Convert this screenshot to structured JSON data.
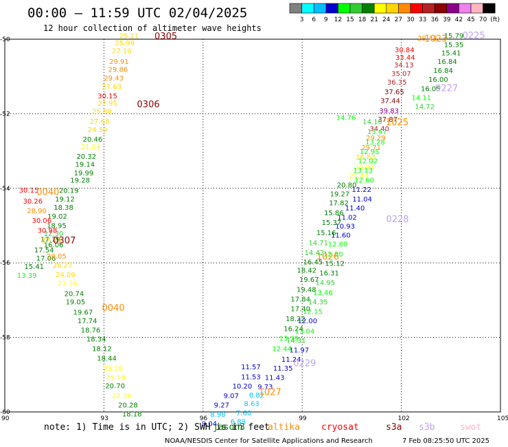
{
  "header": {
    "title": "00:00 — 11:59 UTC 02/04/2025",
    "subtitle": "12 hour collection of altimeter wave heights"
  },
  "colorbar": {
    "labels": [
      "3",
      "6",
      "9",
      "12",
      "15",
      "18",
      "21",
      "24",
      "27",
      "30",
      "33",
      "36",
      "39",
      "42",
      "45",
      "70",
      "(ft)"
    ],
    "colors": [
      "#808080",
      "#00ffff",
      "#00bfff",
      "#0000cd",
      "#00ff00",
      "#32cd32",
      "#008000",
      "#ffff00",
      "#ffd700",
      "#ff8c00",
      "#ff0000",
      "#b22222",
      "#8b0000",
      "#8b008b",
      "#ee82ee",
      "#ffb6c1",
      "#000000"
    ]
  },
  "footer": {
    "note": "note:  1) Time is in UTC; 2) SWH is in feet",
    "credit": "NOAA/NESDIS Center for Satellite Applications and Research",
    "timestamp": "7 Feb 08:25:50 UTC 2025",
    "satellites": [
      {
        "name": "jason3",
        "color": "#008000"
      },
      {
        "name": "altika",
        "color": "#ff8c00"
      },
      {
        "name": "cryosat",
        "color": "#ff0000"
      },
      {
        "name": "s3a",
        "color": "#8b0000"
      },
      {
        "name": "s3b",
        "color": "#c0a0f0"
      },
      {
        "name": "swot",
        "color": "#ffb6c1"
      }
    ]
  },
  "chart_data": {
    "type": "scatter",
    "title": "",
    "xlabel": "",
    "ylabel": "",
    "xlim": [
      90,
      105
    ],
    "ylim": [
      -60,
      -50
    ],
    "xticks": [
      90,
      93,
      96,
      99,
      102,
      105
    ],
    "yticks": [
      -50,
      -52,
      -54,
      -56,
      -58,
      -60
    ],
    "xtick_labels": [
      "90",
      "93",
      "96",
      "99",
      "102",
      "105"
    ],
    "ytick_labels": [
      "-50",
      "-52",
      "-54",
      "-56",
      "-58",
      "-60"
    ],
    "grid": true,
    "points": [
      {
        "x": 93.46,
        "y": -49.97,
        "v": "25.21",
        "c": "#ffd700"
      },
      {
        "x": 93.33,
        "y": -50.17,
        "v": "25.99",
        "c": "#ffd700"
      },
      {
        "x": 93.24,
        "y": -50.38,
        "v": "27.10",
        "c": "#ffd700"
      },
      {
        "x": 93.16,
        "y": -50.66,
        "v": "29.91",
        "c": "#ff8c00"
      },
      {
        "x": 93.13,
        "y": -50.88,
        "v": "29.86",
        "c": "#ff8c00"
      },
      {
        "x": 93.0,
        "y": -51.11,
        "v": "29.43",
        "c": "#ff8c00"
      },
      {
        "x": 92.94,
        "y": -51.34,
        "v": "27.63",
        "c": "#ffd700"
      },
      {
        "x": 92.81,
        "y": -51.59,
        "v": "30.15",
        "c": "#ff0000"
      },
      {
        "x": 92.81,
        "y": -51.78,
        "v": "27.95",
        "c": "#ffd700"
      },
      {
        "x": 92.64,
        "y": -52.0,
        "v": "25.88",
        "c": "#ffd700"
      },
      {
        "x": 92.57,
        "y": -52.27,
        "v": "27.68",
        "c": "#ffd700"
      },
      {
        "x": 92.51,
        "y": -52.49,
        "v": "24.59",
        "c": "#ffd700"
      },
      {
        "x": 92.36,
        "y": -52.75,
        "v": "20.46",
        "c": "#008000"
      },
      {
        "x": 92.3,
        "y": -52.95,
        "v": "21.04",
        "c": "#ffff00"
      },
      {
        "x": 92.17,
        "y": -53.21,
        "v": "20.32",
        "c": "#008000"
      },
      {
        "x": 92.13,
        "y": -53.42,
        "v": "19.14",
        "c": "#008000"
      },
      {
        "x": 92.09,
        "y": -53.65,
        "v": "19.99",
        "c": "#008000"
      },
      {
        "x": 91.98,
        "y": -53.85,
        "v": "19.28",
        "c": "#008000"
      },
      {
        "x": 91.64,
        "y": -54.12,
        "v": "20.19",
        "c": "#008000"
      },
      {
        "x": 91.52,
        "y": -54.35,
        "v": "19.12",
        "c": "#008000"
      },
      {
        "x": 91.48,
        "y": -54.58,
        "v": "18.38",
        "c": "#008000"
      },
      {
        "x": 91.29,
        "y": -54.82,
        "v": "19.02",
        "c": "#008000"
      },
      {
        "x": 91.27,
        "y": -55.06,
        "v": "18.95",
        "c": "#008000"
      },
      {
        "x": 91.18,
        "y": -55.28,
        "v": "12.30",
        "c": "#32cd32"
      },
      {
        "x": 91.08,
        "y": -55.43,
        "v": "17.79",
        "c": "#008000"
      },
      {
        "x": 91.18,
        "y": -55.58,
        "v": "16.06",
        "c": "#008000"
      },
      {
        "x": 90.89,
        "y": -55.72,
        "v": "17.54",
        "c": "#008000"
      },
      {
        "x": 90.95,
        "y": -55.94,
        "v": "17.06",
        "c": "#008000"
      },
      {
        "x": 90.59,
        "y": -56.16,
        "v": "15.41",
        "c": "#008000"
      },
      {
        "x": 90.37,
        "y": -56.4,
        "v": "13.39",
        "c": "#00ff00"
      },
      {
        "x": 90.43,
        "y": -54.11,
        "v": "30.15",
        "c": "#ff0000"
      },
      {
        "x": 90.55,
        "y": -54.41,
        "v": "30.26",
        "c": "#ff0000"
      },
      {
        "x": 90.67,
        "y": -54.67,
        "v": "28.90",
        "c": "#ff8c00"
      },
      {
        "x": 90.82,
        "y": -54.93,
        "v": "30.06",
        "c": "#ff0000"
      },
      {
        "x": 90.99,
        "y": -55.19,
        "v": "30.98",
        "c": "#ff0000"
      },
      {
        "x": 91.11,
        "y": -55.45,
        "v": "27.54",
        "c": "#ffd700"
      },
      {
        "x": 91.27,
        "y": -55.89,
        "v": "29.05",
        "c": "#ff8c00"
      },
      {
        "x": 91.45,
        "y": -56.13,
        "v": "26.27",
        "c": "#ffd700"
      },
      {
        "x": 91.54,
        "y": -56.38,
        "v": "24.09",
        "c": "#ffd700"
      },
      {
        "x": 91.6,
        "y": -56.61,
        "v": "21.76",
        "c": "#ffff00"
      },
      {
        "x": 91.8,
        "y": -56.89,
        "v": "20.74",
        "c": "#008000"
      },
      {
        "x": 91.84,
        "y": -57.11,
        "v": "19.05",
        "c": "#008000"
      },
      {
        "x": 92.07,
        "y": -57.39,
        "v": "19.67",
        "c": "#008000"
      },
      {
        "x": 92.2,
        "y": -57.62,
        "v": "17.74",
        "c": "#008000"
      },
      {
        "x": 92.3,
        "y": -57.87,
        "v": "18.76",
        "c": "#008000"
      },
      {
        "x": 92.47,
        "y": -58.11,
        "v": "18.34",
        "c": "#008000"
      },
      {
        "x": 92.64,
        "y": -58.37,
        "v": "18.12",
        "c": "#008000"
      },
      {
        "x": 92.79,
        "y": -58.63,
        "v": "18.44",
        "c": "#008000"
      },
      {
        "x": 92.98,
        "y": -58.9,
        "v": "23.28",
        "c": "#ffff00"
      },
      {
        "x": 93.06,
        "y": -59.14,
        "v": "21.18",
        "c": "#ffff00"
      },
      {
        "x": 93.04,
        "y": -59.36,
        "v": "20.70",
        "c": "#008000"
      },
      {
        "x": 93.24,
        "y": -59.63,
        "v": "22.36",
        "c": "#ffff00"
      },
      {
        "x": 93.43,
        "y": -59.88,
        "v": "20.28",
        "c": "#008000"
      },
      {
        "x": 93.55,
        "y": -60.12,
        "v": "18.18",
        "c": "#008000"
      },
      {
        "x": 102.49,
        "y": -50.04,
        "v": "29.43",
        "c": "#ff8c00"
      },
      {
        "x": 101.8,
        "y": -50.35,
        "v": "30.84",
        "c": "#ff0000"
      },
      {
        "x": 101.82,
        "y": -50.55,
        "v": "33.44",
        "c": "#ff0000"
      },
      {
        "x": 101.78,
        "y": -50.76,
        "v": "34.13",
        "c": "#b22222"
      },
      {
        "x": 101.7,
        "y": -50.99,
        "v": "35.07",
        "c": "#b22222"
      },
      {
        "x": 101.57,
        "y": -51.22,
        "v": "36.35",
        "c": "#b22222"
      },
      {
        "x": 101.49,
        "y": -51.48,
        "v": "37.65",
        "c": "#8b0000"
      },
      {
        "x": 101.37,
        "y": -51.72,
        "v": "37.44",
        "c": "#8b0000"
      },
      {
        "x": 101.33,
        "y": -51.98,
        "v": "39.83",
        "c": "#8b008b"
      },
      {
        "x": 101.29,
        "y": -52.21,
        "v": "37.87",
        "c": "#8b0000"
      },
      {
        "x": 101.04,
        "y": -52.46,
        "v": "34.40",
        "c": "#b22222"
      },
      {
        "x": 100.93,
        "y": -52.71,
        "v": "29.29",
        "c": "#ff8c00"
      },
      {
        "x": 100.79,
        "y": -52.97,
        "v": "29.71",
        "c": "#ff8c00"
      },
      {
        "x": 100.62,
        "y": -53.23,
        "v": "26.82",
        "c": "#ffd700"
      },
      {
        "x": 100.59,
        "y": -53.5,
        "v": "23.91",
        "c": "#ffff00"
      },
      {
        "x": 100.42,
        "y": -53.74,
        "v": "21.41",
        "c": "#ffff00"
      },
      {
        "x": 100.05,
        "y": -53.98,
        "v": "20.80",
        "c": "#008000"
      },
      {
        "x": 99.84,
        "y": -54.22,
        "v": "19.27",
        "c": "#008000"
      },
      {
        "x": 99.81,
        "y": -54.46,
        "v": "17.82",
        "c": "#008000"
      },
      {
        "x": 99.66,
        "y": -54.72,
        "v": "15.86",
        "c": "#008000"
      },
      {
        "x": 99.59,
        "y": -54.98,
        "v": "15.37",
        "c": "#008000"
      },
      {
        "x": 99.43,
        "y": -55.26,
        "v": "15.16",
        "c": "#008000"
      },
      {
        "x": 99.19,
        "y": -55.53,
        "v": "14.71",
        "c": "#32cd32"
      },
      {
        "x": 99.07,
        "y": -55.79,
        "v": "14.42",
        "c": "#32cd32"
      },
      {
        "x": 99.03,
        "y": -56.04,
        "v": "16.45",
        "c": "#008000"
      },
      {
        "x": 98.84,
        "y": -56.26,
        "v": "18.42",
        "c": "#008000"
      },
      {
        "x": 98.91,
        "y": -56.51,
        "v": "19.67",
        "c": "#008000"
      },
      {
        "x": 98.83,
        "y": -56.78,
        "v": "19.48",
        "c": "#008000"
      },
      {
        "x": 98.65,
        "y": -57.04,
        "v": "17.84",
        "c": "#008000"
      },
      {
        "x": 98.65,
        "y": -57.3,
        "v": "17.40",
        "c": "#008000"
      },
      {
        "x": 98.5,
        "y": -57.56,
        "v": "18.22",
        "c": "#008000"
      },
      {
        "x": 98.44,
        "y": -57.83,
        "v": "16.24",
        "c": "#008000"
      },
      {
        "x": 98.3,
        "y": -58.09,
        "v": "13.39",
        "c": "#00ff00"
      },
      {
        "x": 98.09,
        "y": -58.37,
        "v": "12.44",
        "c": "#00ff00"
      },
      {
        "x": 100.03,
        "y": -52.17,
        "v": "14.76",
        "c": "#00ff00"
      },
      {
        "x": 100.83,
        "y": -52.28,
        "v": "14.10",
        "c": "#32cd32"
      },
      {
        "x": 100.97,
        "y": -52.55,
        "v": "13.47",
        "c": "#00ff00"
      },
      {
        "x": 100.91,
        "y": -52.82,
        "v": "13.28",
        "c": "#00ff00"
      },
      {
        "x": 100.74,
        "y": -53.08,
        "v": "12.95",
        "c": "#00ff00"
      },
      {
        "x": 100.69,
        "y": -53.33,
        "v": "12.02",
        "c": "#00ff00"
      },
      {
        "x": 100.54,
        "y": -53.58,
        "v": "13.13",
        "c": "#00ff00"
      },
      {
        "x": 100.58,
        "y": -53.85,
        "v": "12.60",
        "c": "#00ff00"
      },
      {
        "x": 100.5,
        "y": -54.1,
        "v": "11.22",
        "c": "#0000cd"
      },
      {
        "x": 100.52,
        "y": -54.35,
        "v": "11.04",
        "c": "#0000cd"
      },
      {
        "x": 100.3,
        "y": -54.59,
        "v": "11.40",
        "c": "#0000cd"
      },
      {
        "x": 100.06,
        "y": -54.84,
        "v": "11.02",
        "c": "#0000cd"
      },
      {
        "x": 100.0,
        "y": -55.08,
        "v": "10.93",
        "c": "#0000cd"
      },
      {
        "x": 99.87,
        "y": -55.32,
        "v": "11.60",
        "c": "#0000cd"
      },
      {
        "x": 99.78,
        "y": -55.56,
        "v": "12.80",
        "c": "#00ff00"
      },
      {
        "x": 99.64,
        "y": -55.83,
        "v": "12.80",
        "c": "#00ff00"
      },
      {
        "x": 99.69,
        "y": -56.08,
        "v": "15.12",
        "c": "#008000"
      },
      {
        "x": 99.52,
        "y": -56.34,
        "v": "16.31",
        "c": "#008000"
      },
      {
        "x": 99.4,
        "y": -56.6,
        "v": "14.95",
        "c": "#32cd32"
      },
      {
        "x": 99.33,
        "y": -56.86,
        "v": "13.46",
        "c": "#00ff00"
      },
      {
        "x": 99.18,
        "y": -57.11,
        "v": "14.35",
        "c": "#32cd32"
      },
      {
        "x": 99.02,
        "y": -57.37,
        "v": "12.15",
        "c": "#00ff00"
      },
      {
        "x": 98.86,
        "y": -57.62,
        "v": "12.00",
        "c": "#0000cd"
      },
      {
        "x": 98.78,
        "y": -57.9,
        "v": "13.04",
        "c": "#00ff00"
      },
      {
        "x": 98.52,
        "y": -58.15,
        "v": "14.31",
        "c": "#32cd32"
      },
      {
        "x": 98.61,
        "y": -58.4,
        "v": "11.97",
        "c": "#0000cd"
      },
      {
        "x": 98.37,
        "y": -58.65,
        "v": "11.24",
        "c": "#0000cd"
      },
      {
        "x": 98.12,
        "y": -58.89,
        "v": "11.35",
        "c": "#0000cd"
      },
      {
        "x": 97.87,
        "y": -59.14,
        "v": "11.43",
        "c": "#0000cd"
      },
      {
        "x": 97.65,
        "y": -59.39,
        "v": "9.73",
        "c": "#0000cd"
      },
      {
        "x": 97.39,
        "y": -59.61,
        "v": "8.82",
        "c": "#00bfff"
      },
      {
        "x": 97.24,
        "y": -59.84,
        "v": "8.63",
        "c": "#00bfff"
      },
      {
        "x": 97.0,
        "y": -60.09,
        "v": "7.60",
        "c": "#00bfff"
      },
      {
        "x": 96.83,
        "y": -60.32,
        "v": "6.89",
        "c": "#00bfff"
      },
      {
        "x": 97.15,
        "y": -58.86,
        "v": "11.57",
        "c": "#0000cd"
      },
      {
        "x": 97.15,
        "y": -59.12,
        "v": "11.53",
        "c": "#0000cd"
      },
      {
        "x": 96.89,
        "y": -59.37,
        "v": "10.20",
        "c": "#0000cd"
      },
      {
        "x": 96.62,
        "y": -59.63,
        "v": "9.07",
        "c": "#0000cd"
      },
      {
        "x": 96.33,
        "y": -59.88,
        "v": "9.27",
        "c": "#0000cd"
      },
      {
        "x": 96.22,
        "y": -60.13,
        "v": "8.98",
        "c": "#00bfff"
      },
      {
        "x": 95.96,
        "y": -60.38,
        "v": "9.04",
        "c": "#0000cd"
      },
      {
        "x": 103.29,
        "y": -49.97,
        "v": "15.79",
        "c": "#008000"
      },
      {
        "x": 103.29,
        "y": -50.21,
        "v": "15.35",
        "c": "#008000"
      },
      {
        "x": 103.21,
        "y": -50.43,
        "v": "15.41",
        "c": "#008000"
      },
      {
        "x": 103.09,
        "y": -50.66,
        "v": "16.84",
        "c": "#008000"
      },
      {
        "x": 102.97,
        "y": -50.9,
        "v": "16.84",
        "c": "#008000"
      },
      {
        "x": 102.82,
        "y": -51.14,
        "v": "16.00",
        "c": "#008000"
      },
      {
        "x": 102.59,
        "y": -51.39,
        "v": "16.05",
        "c": "#008000"
      },
      {
        "x": 102.31,
        "y": -51.63,
        "v": "14.11",
        "c": "#00ff00"
      },
      {
        "x": 102.41,
        "y": -51.87,
        "v": "14.72",
        "c": "#32cd32"
      }
    ],
    "pass_labels": [
      {
        "x": 94.53,
        "y": -50.0,
        "text": "0305",
        "c": "#8b0000"
      },
      {
        "x": 94.0,
        "y": -51.83,
        "text": "0306",
        "c": "#8b0000"
      },
      {
        "x": 91.46,
        "y": -55.48,
        "text": "0307",
        "c": "#8b0000"
      },
      {
        "x": 90.96,
        "y": -54.18,
        "text": "0040",
        "c": "#ff8c00"
      },
      {
        "x": 92.94,
        "y": -57.29,
        "text": "0040",
        "c": "#ff8c00"
      },
      {
        "x": 103.85,
        "y": -49.98,
        "text": "0225",
        "c": "#c0a0f0"
      },
      {
        "x": 103.03,
        "y": -51.39,
        "text": "0227",
        "c": "#c0a0f0"
      },
      {
        "x": 101.54,
        "y": -54.91,
        "text": "0228",
        "c": "#c0a0f0"
      },
      {
        "x": 98.73,
        "y": -58.77,
        "text": "0229",
        "c": "#c0a0f0"
      },
      {
        "x": 102.7,
        "y": -50.06,
        "text": "1023",
        "c": "#ff8c00"
      },
      {
        "x": 101.53,
        "y": -52.31,
        "text": "1025",
        "c": "#ff8c00"
      },
      {
        "x": 99.43,
        "y": -55.91,
        "text": "1026",
        "c": "#ff8c00"
      },
      {
        "x": 97.68,
        "y": -59.55,
        "text": "1027",
        "c": "#ff8c00"
      }
    ]
  }
}
